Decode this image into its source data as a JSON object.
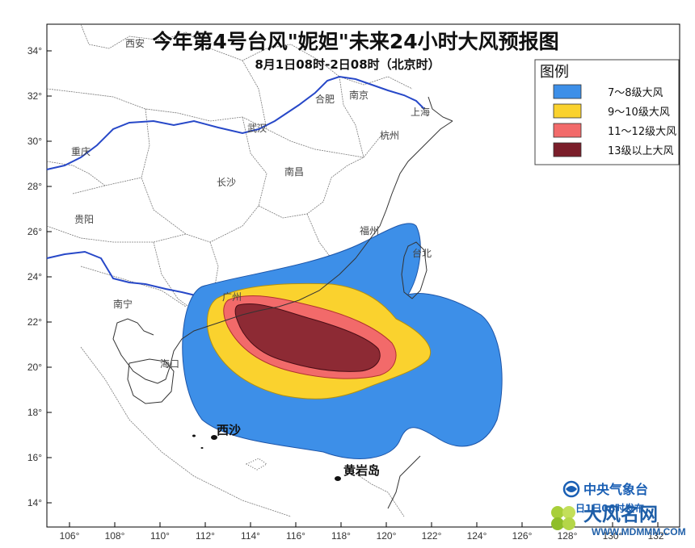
{
  "title": "今年第4号台风\"妮妲\"未来24小时大风预报图",
  "subtitle": "8月1日08时-2日08时（北京时）",
  "axes": {
    "lon_ticks": [
      "106°",
      "108°",
      "110°",
      "112°",
      "114°",
      "116°",
      "118°",
      "120°",
      "122°",
      "124°",
      "126°",
      "128°",
      "130°",
      "132°"
    ],
    "lat_ticks": [
      "34°",
      "32°",
      "30°",
      "28°",
      "26°",
      "24°",
      "22°",
      "20°",
      "18°",
      "16°",
      "14°"
    ]
  },
  "cities": [
    "西安",
    "合肥",
    "南京",
    "上海",
    "武汉",
    "杭州",
    "重庆",
    "长沙",
    "南昌",
    "贵阳",
    "福州",
    "台北",
    "南宁",
    "广州",
    "海口"
  ],
  "islands": {
    "xisha": "西沙",
    "huangyan": "黄岩岛"
  },
  "legend": {
    "title": "图例",
    "items": [
      {
        "label": "7～8级大风",
        "color": "#3d8fe8"
      },
      {
        "label": "9～10级大风",
        "color": "#fad22e"
      },
      {
        "label": "11～12级大风",
        "color": "#f26a6a"
      },
      {
        "label": "13级以上大风",
        "color": "#7b1e2a"
      }
    ]
  },
  "footer": {
    "org": "中央气象台",
    "issued": "日1日06时发布"
  },
  "watermark": {
    "name": "大风名网",
    "url": "WWW.MDMMM.COM"
  }
}
